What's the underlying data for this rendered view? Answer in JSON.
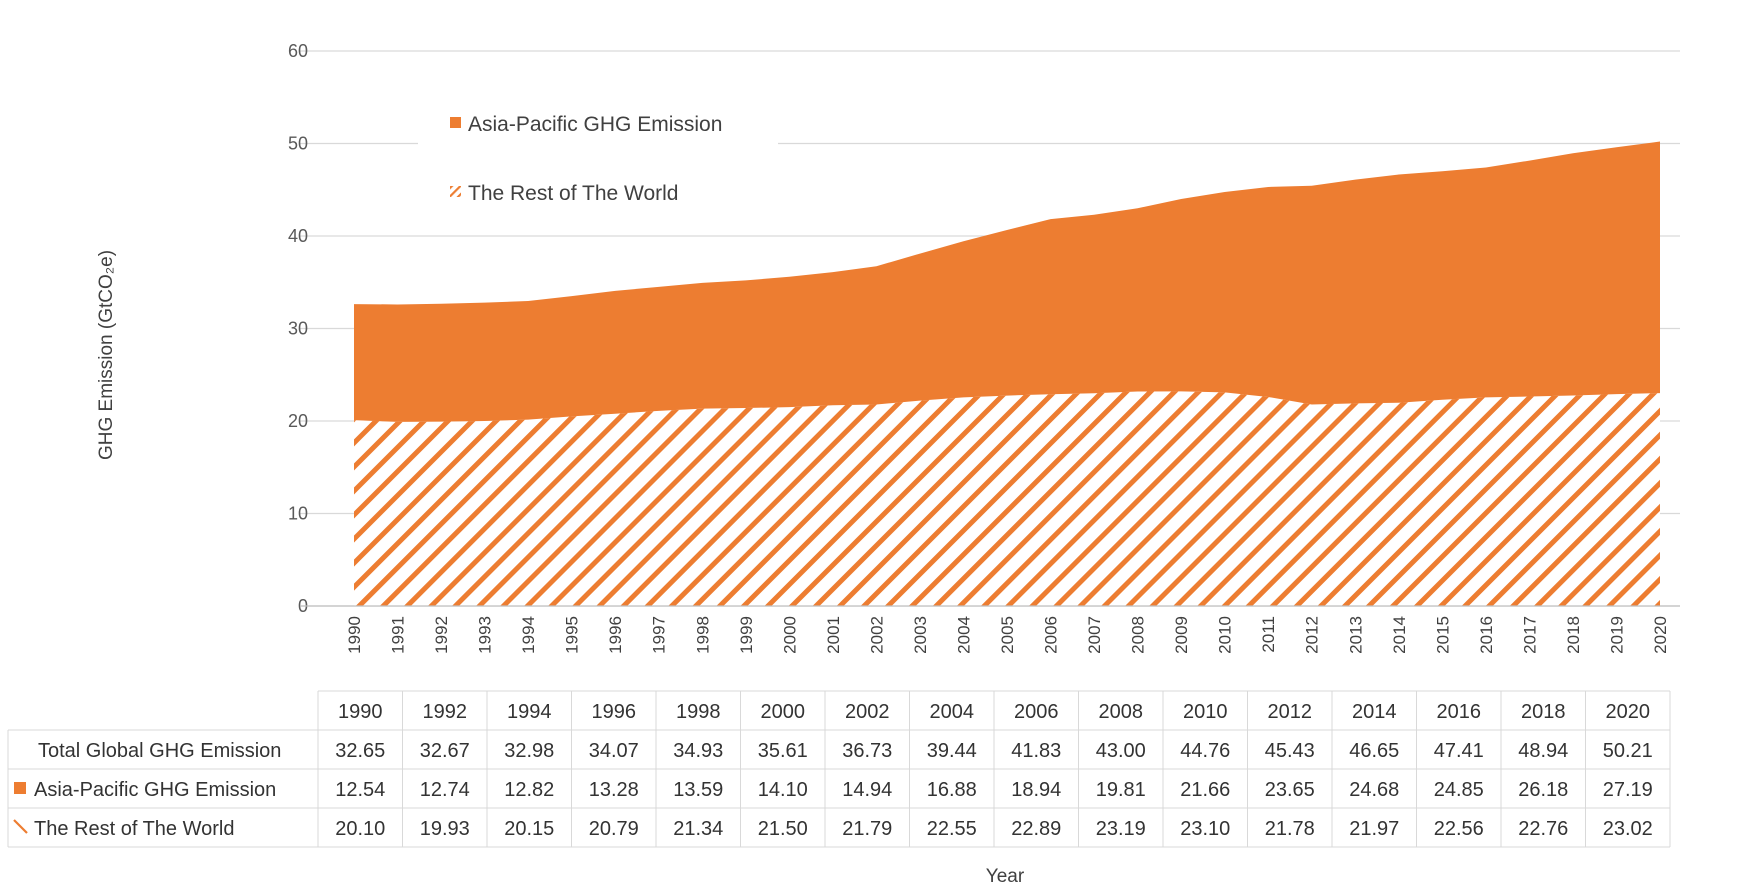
{
  "chart_data": {
    "type": "area",
    "stacked": true,
    "title": "",
    "ylabel": "GHG Emission (GtCO₂e)",
    "xlabel": "Year",
    "ylim": [
      0,
      60
    ],
    "yticks": [
      0,
      10,
      20,
      30,
      40,
      50,
      60
    ],
    "grid": "horizontal",
    "legend_placement": "top-left",
    "x_axis_ticks": [
      "1990",
      "1991",
      "1992",
      "1993",
      "1994",
      "1995",
      "1996",
      "1997",
      "1998",
      "1999",
      "2000",
      "2001",
      "2002",
      "2003",
      "2004",
      "2005",
      "2006",
      "2007",
      "2008",
      "2009",
      "2010",
      "2011",
      "2012",
      "2013",
      "2014",
      "2015",
      "2016",
      "2017",
      "2018",
      "2019",
      "2020"
    ],
    "x": [
      1990,
      1991,
      1992,
      1993,
      1994,
      1995,
      1996,
      1997,
      1998,
      1999,
      2000,
      2001,
      2002,
      2003,
      2004,
      2005,
      2006,
      2007,
      2008,
      2009,
      2010,
      2011,
      2012,
      2013,
      2014,
      2015,
      2016,
      2017,
      2018,
      2019,
      2020
    ],
    "series": [
      {
        "name": "The Rest of The World",
        "fill": "hatched",
        "color": "#ED7D31",
        "values": [
          20.1,
          19.9,
          19.93,
          20.0,
          20.15,
          20.5,
          20.79,
          21.1,
          21.34,
          21.4,
          21.5,
          21.7,
          21.79,
          22.2,
          22.55,
          22.75,
          22.89,
          23.0,
          23.19,
          23.2,
          23.1,
          22.6,
          21.78,
          21.9,
          21.97,
          22.3,
          22.56,
          22.65,
          22.76,
          22.9,
          23.02
        ]
      },
      {
        "name": "Asia-Pacific GHG Emission",
        "fill": "solid",
        "color": "#ED7D31",
        "values": [
          12.54,
          12.7,
          12.74,
          12.8,
          12.82,
          13.0,
          13.28,
          13.4,
          13.59,
          13.8,
          14.1,
          14.4,
          14.94,
          15.9,
          16.88,
          17.9,
          18.94,
          19.3,
          19.81,
          20.8,
          21.66,
          22.7,
          23.65,
          24.2,
          24.68,
          24.7,
          24.85,
          25.5,
          26.18,
          26.7,
          27.19
        ]
      }
    ],
    "table": {
      "years": [
        "1990",
        "1992",
        "1994",
        "1996",
        "1998",
        "2000",
        "2002",
        "2004",
        "2006",
        "2008",
        "2010",
        "2012",
        "2014",
        "2016",
        "2018",
        "2020"
      ],
      "rows": [
        {
          "label": "Total Global GHG Emission",
          "marker": "none",
          "values": [
            "32.65",
            "32.67",
            "32.98",
            "34.07",
            "34.93",
            "35.61",
            "36.73",
            "39.44",
            "41.83",
            "43.00",
            "44.76",
            "45.43",
            "46.65",
            "47.41",
            "48.94",
            "50.21"
          ]
        },
        {
          "label": "Asia-Pacific GHG Emission",
          "marker": "solid",
          "values": [
            "12.54",
            "12.74",
            "12.82",
            "13.28",
            "13.59",
            "14.10",
            "14.94",
            "16.88",
            "18.94",
            "19.81",
            "21.66",
            "23.65",
            "24.68",
            "24.85",
            "26.18",
            "27.19"
          ]
        },
        {
          "label": "The Rest of The World",
          "marker": "hatched",
          "values": [
            "20.10",
            "19.93",
            "20.15",
            "20.79",
            "21.34",
            "21.50",
            "21.79",
            "22.55",
            "22.89",
            "23.19",
            "23.10",
            "21.78",
            "21.97",
            "22.56",
            "22.76",
            "23.02"
          ]
        }
      ]
    }
  }
}
